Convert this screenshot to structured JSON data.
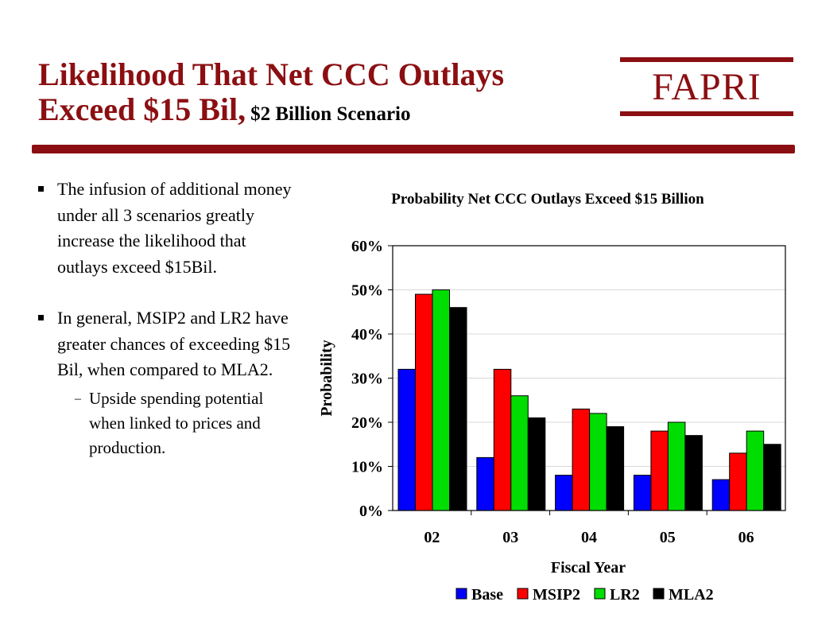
{
  "slide": {
    "title_line1": "Likelihood That Net CCC Outlays",
    "title_line2": "Exceed $15 Bil,",
    "title_sub": "$2 Billion Scenario",
    "logo_text": "FAPRI",
    "brand_color": "#8b0f12"
  },
  "bullets": [
    {
      "text": "The infusion of additional money under all 3 scenarios greatly increase the likelihood that outlays exceed $15Bil.",
      "subs": []
    },
    {
      "text": "In general, MSIP2 and LR2 have greater chances of exceeding $15 Bil, when compared to MLA2.",
      "subs": [
        "Upside spending potential when linked to prices and production."
      ]
    }
  ],
  "chart_data": {
    "type": "bar",
    "title": "Probability Net CCC Outlays Exceed $15 Billion",
    "xlabel": "Fiscal Year",
    "ylabel": "Probability",
    "categories": [
      "02",
      "03",
      "04",
      "05",
      "06"
    ],
    "ylim": [
      0,
      60
    ],
    "y_ticks": [
      "0%",
      "10%",
      "20%",
      "30%",
      "40%",
      "50%",
      "60%"
    ],
    "grid": true,
    "legend_position": "bottom",
    "series": [
      {
        "name": "Base",
        "color": "#0000ff",
        "values": [
          32,
          12,
          8,
          8,
          7
        ]
      },
      {
        "name": "MSIP2",
        "color": "#ff0000",
        "values": [
          49,
          32,
          23,
          18,
          13
        ]
      },
      {
        "name": "LR2",
        "color": "#00dd00",
        "values": [
          50,
          26,
          22,
          20,
          18
        ]
      },
      {
        "name": "MLA2",
        "color": "#000000",
        "values": [
          46,
          21,
          19,
          17,
          15
        ]
      }
    ]
  }
}
